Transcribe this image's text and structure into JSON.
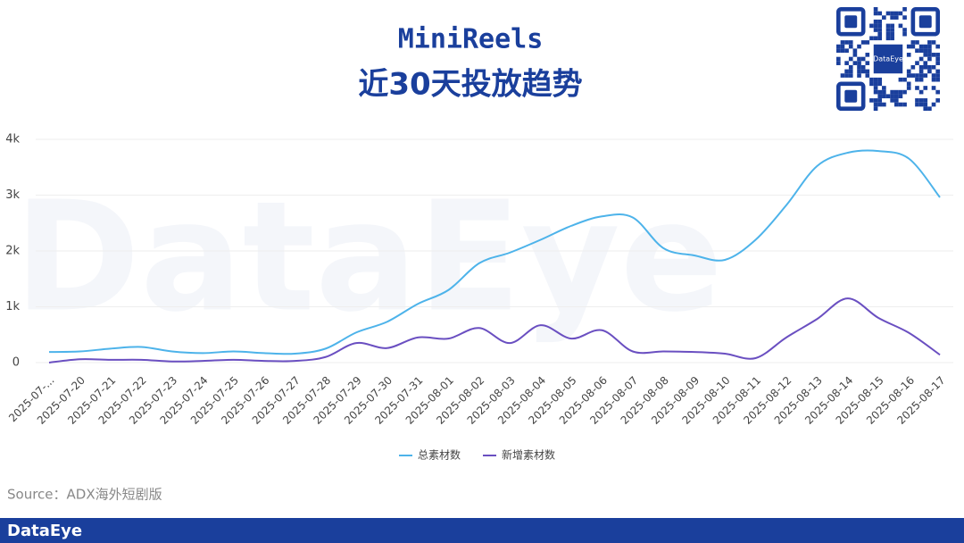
{
  "chart_data": {
    "type": "line",
    "title": "MiniReels",
    "subtitle": "近30天投放趋势",
    "categories": [
      "2025-07-...",
      "2025-07-20",
      "2025-07-21",
      "2025-07-22",
      "2025-07-23",
      "2025-07-24",
      "2025-07-25",
      "2025-07-26",
      "2025-07-27",
      "2025-07-28",
      "2025-07-29",
      "2025-07-30",
      "2025-07-31",
      "2025-08-01",
      "2025-08-02",
      "2025-08-03",
      "2025-08-04",
      "2025-08-05",
      "2025-08-06",
      "2025-08-07",
      "2025-08-08",
      "2025-08-09",
      "2025-08-10",
      "2025-08-11",
      "2025-08-12",
      "2025-08-13",
      "2025-08-14",
      "2025-08-15",
      "2025-08-16",
      "2025-08-17"
    ],
    "series": [
      {
        "name": "总素材数",
        "color": "#4db3ea",
        "values": [
          190,
          200,
          250,
          280,
          200,
          170,
          200,
          170,
          160,
          250,
          540,
          730,
          1050,
          1300,
          1780,
          1970,
          2200,
          2450,
          2620,
          2600,
          2050,
          1920,
          1840,
          2200,
          2820,
          3520,
          3760,
          3790,
          3650,
          2960
        ]
      },
      {
        "name": "新增素材数",
        "color": "#6a4fc1",
        "values": [
          0,
          60,
          50,
          50,
          20,
          30,
          50,
          30,
          30,
          100,
          350,
          260,
          450,
          430,
          620,
          350,
          670,
          430,
          580,
          200,
          200,
          190,
          160,
          80,
          450,
          780,
          1150,
          800,
          530,
          140
        ]
      }
    ],
    "ylim": [
      0,
      4000
    ],
    "yticks": [
      0,
      {
        "value": 1000,
        "label": "1k"
      },
      {
        "value": 2000,
        "label": "2k"
      },
      {
        "value": 3000,
        "label": "3k"
      },
      {
        "value": 4000,
        "label": "4k"
      }
    ],
    "grid": true,
    "legend": "bottom"
  },
  "source": "Source：ADX海外短剧版",
  "brand": "DataEye"
}
